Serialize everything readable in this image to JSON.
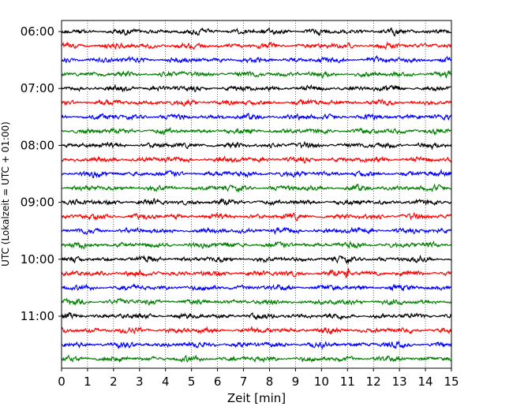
{
  "chart_data": {
    "type": "line",
    "title": "",
    "xlabel": "Zeit  [min]",
    "ylabel": "UTC (Lokalzeit = UTC + 01:00)",
    "xlim": [
      0,
      15
    ],
    "xticks": [
      "0",
      "1",
      "2",
      "3",
      "4",
      "5",
      "6",
      "7",
      "8",
      "9",
      "10",
      "11",
      "12",
      "13",
      "14",
      "15"
    ],
    "yticks": [
      "06:00",
      "07:00",
      "08:00",
      "09:00",
      "10:00",
      "11:00"
    ],
    "grid": {
      "vertical": true,
      "horizontal": false,
      "style": "dotted"
    },
    "trace_interval_min": 15,
    "trace_colors": [
      "#000000",
      "#ff0000",
      "#0000ff",
      "#008000"
    ],
    "series": [
      {
        "start": "06:00",
        "color": "#000000"
      },
      {
        "start": "06:15",
        "color": "#ff0000"
      },
      {
        "start": "06:30",
        "color": "#0000ff"
      },
      {
        "start": "06:45",
        "color": "#008000"
      },
      {
        "start": "07:00",
        "color": "#000000"
      },
      {
        "start": "07:15",
        "color": "#ff0000"
      },
      {
        "start": "07:30",
        "color": "#0000ff"
      },
      {
        "start": "07:45",
        "color": "#008000"
      },
      {
        "start": "08:00",
        "color": "#000000"
      },
      {
        "start": "08:15",
        "color": "#ff0000"
      },
      {
        "start": "08:30",
        "color": "#0000ff"
      },
      {
        "start": "08:45",
        "color": "#008000"
      },
      {
        "start": "09:00",
        "color": "#000000"
      },
      {
        "start": "09:15",
        "color": "#ff0000"
      },
      {
        "start": "09:30",
        "color": "#0000ff"
      },
      {
        "start": "09:45",
        "color": "#008000"
      },
      {
        "start": "10:00",
        "color": "#000000"
      },
      {
        "start": "10:15",
        "color": "#ff0000"
      },
      {
        "start": "10:30",
        "color": "#0000ff"
      },
      {
        "start": "10:45",
        "color": "#008000"
      },
      {
        "start": "11:00",
        "color": "#000000"
      },
      {
        "start": "11:15",
        "color": "#ff0000"
      },
      {
        "start": "11:30",
        "color": "#0000ff"
      },
      {
        "start": "11:45",
        "color": "#008000"
      }
    ]
  }
}
